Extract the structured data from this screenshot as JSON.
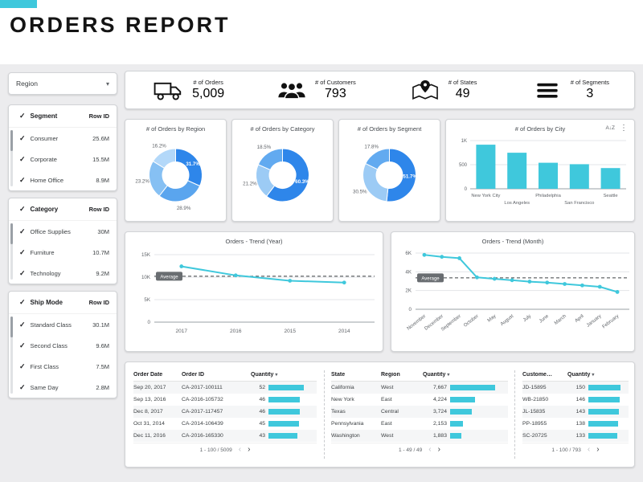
{
  "accent": "#3fc8dc",
  "title": "ORDERS REPORT",
  "sidebar": {
    "region_filter": {
      "label": "Region"
    },
    "filters": [
      {
        "name": "Segment",
        "metric": "Row ID",
        "items": [
          {
            "label": "Consumer",
            "value": "25.6M"
          },
          {
            "label": "Corporate",
            "value": "15.5M"
          },
          {
            "label": "Home Office",
            "value": "8.9M"
          }
        ]
      },
      {
        "name": "Category",
        "metric": "Row ID",
        "items": [
          {
            "label": "Office Supplies",
            "value": "30M"
          },
          {
            "label": "Furniture",
            "value": "10.7M"
          },
          {
            "label": "Technology",
            "value": "9.2M"
          }
        ]
      },
      {
        "name": "Ship Mode",
        "metric": "Row ID",
        "items": [
          {
            "label": "Standard Class",
            "value": "30.1M"
          },
          {
            "label": "Second Class",
            "value": "9.6M"
          },
          {
            "label": "First Class",
            "value": "7.5M"
          },
          {
            "label": "Same Day",
            "value": "2.8M"
          }
        ]
      }
    ]
  },
  "kpis": [
    {
      "icon": "truck-icon",
      "label": "# of Orders",
      "value": "5,009"
    },
    {
      "icon": "customers-icon",
      "label": "# of Customers",
      "value": "793"
    },
    {
      "icon": "map-pin-icon",
      "label": "# of States",
      "value": "49"
    },
    {
      "icon": "menu-icon",
      "label": "# of Segments",
      "value": "3"
    }
  ],
  "chart_data": [
    {
      "type": "pie",
      "title": "# of Orders by Region",
      "values": [
        31.7,
        28.9,
        23.2,
        16.2
      ],
      "labels": [
        "31.7%",
        "28.9%",
        "23.2%",
        "16.2%"
      ],
      "colors": [
        "#2e86ea",
        "#5aa5ee",
        "#86c0f3",
        "#b3d8f9"
      ]
    },
    {
      "type": "pie",
      "title": "# of Orders by Category",
      "values": [
        60.3,
        21.2,
        18.5
      ],
      "labels": [
        "60.3%",
        "21.2%",
        "18.5%"
      ],
      "colors": [
        "#2e86ea",
        "#9ccbf5",
        "#62aaf0"
      ]
    },
    {
      "type": "pie",
      "title": "# of Orders by Segment",
      "values": [
        51.7,
        30.5,
        17.8
      ],
      "labels": [
        "51.7%",
        "30.5%",
        "17.8%"
      ],
      "colors": [
        "#2e86ea",
        "#9ccbf5",
        "#62aaf0"
      ]
    },
    {
      "type": "bar",
      "title": "# of Orders by City",
      "categories": [
        "New York City",
        "Los Angeles",
        "Philadelphia",
        "San Francisco",
        "Seattle"
      ],
      "values": [
        915,
        748,
        540,
        510,
        430
      ],
      "ylim": [
        0,
        1000
      ],
      "yticks": [
        {
          "v": 0,
          "t": "0"
        },
        {
          "v": 500,
          "t": "500"
        },
        {
          "v": 1000,
          "t": "1K"
        }
      ]
    },
    {
      "type": "line",
      "title": "Orders - Trend (Year)",
      "x": [
        "2017",
        "2016",
        "2015",
        "2014"
      ],
      "values": [
        12400,
        10400,
        9200,
        8800
      ],
      "ylim": [
        0,
        15000
      ],
      "yticks": [
        {
          "v": 0,
          "t": "0"
        },
        {
          "v": 5000,
          "t": "5K"
        },
        {
          "v": 10000,
          "t": "10K"
        },
        {
          "v": 15000,
          "t": "15K"
        }
      ],
      "average": 10200,
      "average_label": "Average"
    },
    {
      "type": "line",
      "title": "Orders - Trend (Month)",
      "x": [
        "November",
        "December",
        "September",
        "October",
        "May",
        "August",
        "July",
        "June",
        "March",
        "April",
        "January",
        "February"
      ],
      "values": [
        5800,
        5600,
        5450,
        3400,
        3250,
        3100,
        2950,
        2850,
        2700,
        2550,
        2400,
        1850
      ],
      "ylim": [
        0,
        6000
      ],
      "yticks": [
        {
          "v": 0,
          "t": "0"
        },
        {
          "v": 2000,
          "t": "2K"
        },
        {
          "v": 4000,
          "t": "4K"
        },
        {
          "v": 6000,
          "t": "6K"
        }
      ],
      "average": 3350,
      "average_label": "Average",
      "rotate_labels": true
    }
  ],
  "tables": [
    {
      "columns": [
        "Order Date",
        "Order ID",
        "Quantity"
      ],
      "sort": "Quantity",
      "rows": [
        [
          "Sep 20, 2017",
          "CA-2017-100111",
          "52"
        ],
        [
          "Sep 13, 2016",
          "CA-2016-105732",
          "46"
        ],
        [
          "Dec 8, 2017",
          "CA-2017-117457",
          "46"
        ],
        [
          "Oct 31, 2014",
          "CA-2014-106439",
          "45"
        ],
        [
          "Dec 11, 2016",
          "CA-2016-165330",
          "43"
        ]
      ],
      "pagination": "1 - 100 / 5009"
    },
    {
      "columns": [
        "State",
        "Region",
        "Quantity"
      ],
      "sort": "Quantity",
      "rows": [
        [
          "California",
          "West",
          "7,667"
        ],
        [
          "New York",
          "East",
          "4,224"
        ],
        [
          "Texas",
          "Central",
          "3,724"
        ],
        [
          "Pennsylvania",
          "East",
          "2,153"
        ],
        [
          "Washington",
          "West",
          "1,883"
        ]
      ],
      "pagination": "1 - 49 / 49"
    },
    {
      "columns": [
        "Custome…",
        "Quantity"
      ],
      "sort": "Quantity",
      "rows": [
        [
          "JD-15895",
          "150"
        ],
        [
          "WB-21850",
          "146"
        ],
        [
          "JL-15835",
          "143"
        ],
        [
          "PP-18955",
          "138"
        ],
        [
          "SC-20725",
          "133"
        ]
      ],
      "pagination": "1 - 100 / 793"
    }
  ]
}
